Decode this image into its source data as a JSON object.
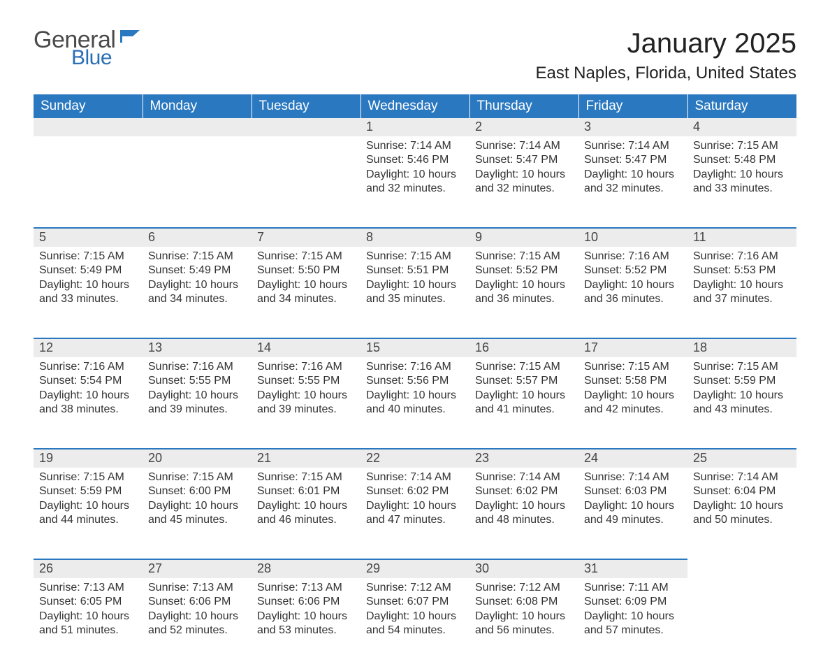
{
  "logo": {
    "general": "General",
    "blue": "Blue",
    "flag_color": "#2a78c0"
  },
  "title": "January 2025",
  "location": "East Naples, Florida, United States",
  "weekdays": [
    "Sunday",
    "Monday",
    "Tuesday",
    "Wednesday",
    "Thursday",
    "Friday",
    "Saturday"
  ],
  "colors": {
    "header_bg": "#2a78c0",
    "header_text": "#ffffff",
    "daynum_bg": "#ececec",
    "daynum_border": "#2a78c0",
    "body_text": "#333333",
    "page_bg": "#ffffff"
  },
  "weeks": [
    [
      null,
      null,
      null,
      {
        "n": "1",
        "sunrise": "7:14 AM",
        "sunset": "5:46 PM",
        "daylight": "10 hours and 32 minutes."
      },
      {
        "n": "2",
        "sunrise": "7:14 AM",
        "sunset": "5:47 PM",
        "daylight": "10 hours and 32 minutes."
      },
      {
        "n": "3",
        "sunrise": "7:14 AM",
        "sunset": "5:47 PM",
        "daylight": "10 hours and 32 minutes."
      },
      {
        "n": "4",
        "sunrise": "7:15 AM",
        "sunset": "5:48 PM",
        "daylight": "10 hours and 33 minutes."
      }
    ],
    [
      {
        "n": "5",
        "sunrise": "7:15 AM",
        "sunset": "5:49 PM",
        "daylight": "10 hours and 33 minutes."
      },
      {
        "n": "6",
        "sunrise": "7:15 AM",
        "sunset": "5:49 PM",
        "daylight": "10 hours and 34 minutes."
      },
      {
        "n": "7",
        "sunrise": "7:15 AM",
        "sunset": "5:50 PM",
        "daylight": "10 hours and 34 minutes."
      },
      {
        "n": "8",
        "sunrise": "7:15 AM",
        "sunset": "5:51 PM",
        "daylight": "10 hours and 35 minutes."
      },
      {
        "n": "9",
        "sunrise": "7:15 AM",
        "sunset": "5:52 PM",
        "daylight": "10 hours and 36 minutes."
      },
      {
        "n": "10",
        "sunrise": "7:16 AM",
        "sunset": "5:52 PM",
        "daylight": "10 hours and 36 minutes."
      },
      {
        "n": "11",
        "sunrise": "7:16 AM",
        "sunset": "5:53 PM",
        "daylight": "10 hours and 37 minutes."
      }
    ],
    [
      {
        "n": "12",
        "sunrise": "7:16 AM",
        "sunset": "5:54 PM",
        "daylight": "10 hours and 38 minutes."
      },
      {
        "n": "13",
        "sunrise": "7:16 AM",
        "sunset": "5:55 PM",
        "daylight": "10 hours and 39 minutes."
      },
      {
        "n": "14",
        "sunrise": "7:16 AM",
        "sunset": "5:55 PM",
        "daylight": "10 hours and 39 minutes."
      },
      {
        "n": "15",
        "sunrise": "7:16 AM",
        "sunset": "5:56 PM",
        "daylight": "10 hours and 40 minutes."
      },
      {
        "n": "16",
        "sunrise": "7:15 AM",
        "sunset": "5:57 PM",
        "daylight": "10 hours and 41 minutes."
      },
      {
        "n": "17",
        "sunrise": "7:15 AM",
        "sunset": "5:58 PM",
        "daylight": "10 hours and 42 minutes."
      },
      {
        "n": "18",
        "sunrise": "7:15 AM",
        "sunset": "5:59 PM",
        "daylight": "10 hours and 43 minutes."
      }
    ],
    [
      {
        "n": "19",
        "sunrise": "7:15 AM",
        "sunset": "5:59 PM",
        "daylight": "10 hours and 44 minutes."
      },
      {
        "n": "20",
        "sunrise": "7:15 AM",
        "sunset": "6:00 PM",
        "daylight": "10 hours and 45 minutes."
      },
      {
        "n": "21",
        "sunrise": "7:15 AM",
        "sunset": "6:01 PM",
        "daylight": "10 hours and 46 minutes."
      },
      {
        "n": "22",
        "sunrise": "7:14 AM",
        "sunset": "6:02 PM",
        "daylight": "10 hours and 47 minutes."
      },
      {
        "n": "23",
        "sunrise": "7:14 AM",
        "sunset": "6:02 PM",
        "daylight": "10 hours and 48 minutes."
      },
      {
        "n": "24",
        "sunrise": "7:14 AM",
        "sunset": "6:03 PM",
        "daylight": "10 hours and 49 minutes."
      },
      {
        "n": "25",
        "sunrise": "7:14 AM",
        "sunset": "6:04 PM",
        "daylight": "10 hours and 50 minutes."
      }
    ],
    [
      {
        "n": "26",
        "sunrise": "7:13 AM",
        "sunset": "6:05 PM",
        "daylight": "10 hours and 51 minutes."
      },
      {
        "n": "27",
        "sunrise": "7:13 AM",
        "sunset": "6:06 PM",
        "daylight": "10 hours and 52 minutes."
      },
      {
        "n": "28",
        "sunrise": "7:13 AM",
        "sunset": "6:06 PM",
        "daylight": "10 hours and 53 minutes."
      },
      {
        "n": "29",
        "sunrise": "7:12 AM",
        "sunset": "6:07 PM",
        "daylight": "10 hours and 54 minutes."
      },
      {
        "n": "30",
        "sunrise": "7:12 AM",
        "sunset": "6:08 PM",
        "daylight": "10 hours and 56 minutes."
      },
      {
        "n": "31",
        "sunrise": "7:11 AM",
        "sunset": "6:09 PM",
        "daylight": "10 hours and 57 minutes."
      },
      null
    ]
  ],
  "labels": {
    "sunrise": "Sunrise: ",
    "sunset": "Sunset: ",
    "daylight": "Daylight: "
  }
}
